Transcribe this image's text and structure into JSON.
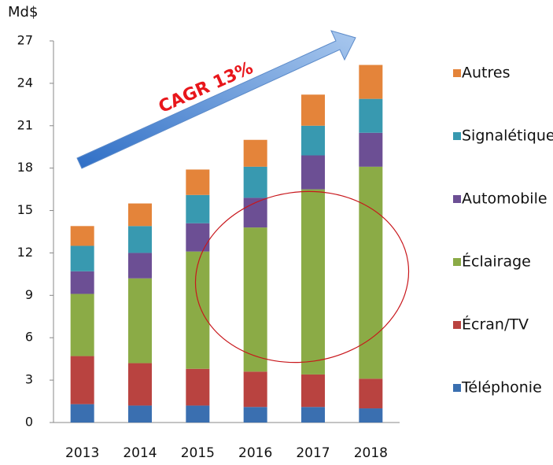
{
  "chart_data": {
    "type": "stacked_bar",
    "y_axis_label": "Md$",
    "annotation": "CAGR 13%",
    "categories": [
      "2013",
      "2014",
      "2015",
      "2016",
      "2017",
      "2018"
    ],
    "series": [
      {
        "name": "Téléphonie",
        "color": "#3a6fb0",
        "values": [
          1.3,
          1.2,
          1.2,
          1.1,
          1.1,
          1.0
        ]
      },
      {
        "name": "Écran/TV",
        "color": "#b94340",
        "values": [
          3.4,
          3.0,
          2.6,
          2.5,
          2.3,
          2.1
        ]
      },
      {
        "name": "Éclairage",
        "color": "#8bab46",
        "values": [
          4.4,
          6.0,
          8.3,
          10.2,
          13.1,
          15.0
        ]
      },
      {
        "name": "Automobile",
        "color": "#6c4f94",
        "values": [
          1.6,
          1.8,
          2.0,
          2.1,
          2.4,
          2.4
        ]
      },
      {
        "name": "Signalétique",
        "color": "#3899b0",
        "values": [
          1.8,
          1.9,
          2.0,
          2.2,
          2.1,
          2.4
        ]
      },
      {
        "name": "Autres",
        "color": "#e4843a",
        "values": [
          1.4,
          1.6,
          1.8,
          1.9,
          2.2,
          2.4
        ]
      }
    ],
    "ylim": [
      0,
      27
    ],
    "yticks": [
      0,
      3,
      6,
      9,
      12,
      15,
      18,
      21,
      24,
      27
    ],
    "grid": false,
    "legend": "right"
  }
}
